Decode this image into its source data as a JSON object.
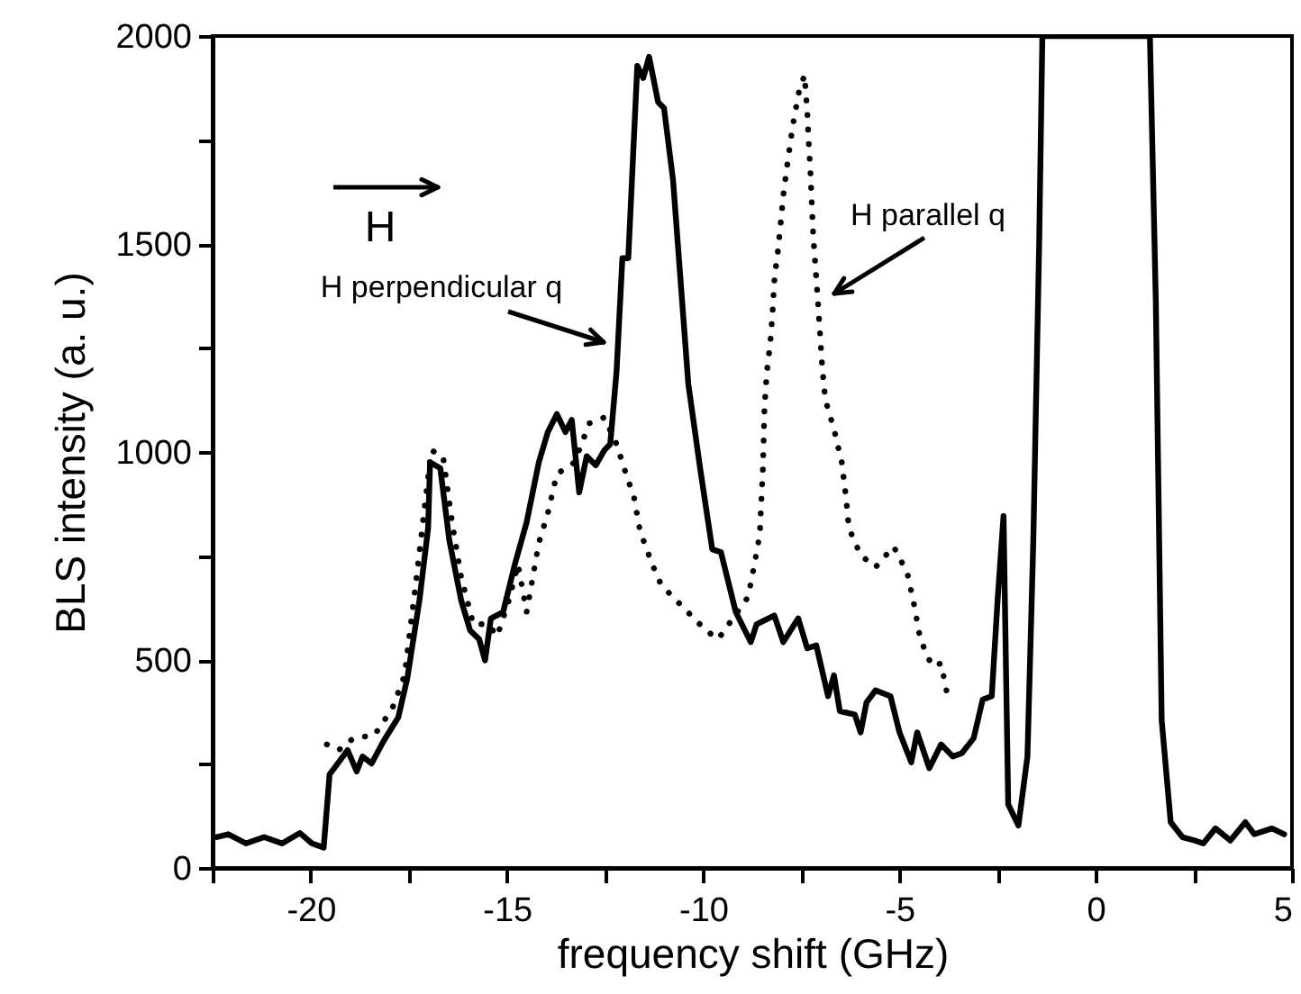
{
  "chart_data": {
    "type": "line",
    "xlabel": "frequency shift (GHz)",
    "ylabel": "BLS intensity (a. u.)",
    "xlim": [
      -22.5,
      5
    ],
    "ylim": [
      0,
      2000
    ],
    "xticks": [
      {
        "value": -22.5,
        "label": null
      },
      -20,
      {
        "value": -17.5,
        "label": null
      },
      -15,
      {
        "value": -12.5,
        "label": null
      },
      -10,
      {
        "value": -7.5,
        "label": null
      },
      -5,
      {
        "value": -2.5,
        "label": null
      },
      0,
      {
        "value": 2.5,
        "label": null
      },
      5
    ],
    "yticks": [
      0,
      {
        "value": 250,
        "label": null
      },
      500,
      {
        "value": 750,
        "label": null
      },
      1000,
      {
        "value": 1250,
        "label": null
      },
      1500,
      {
        "value": 1750,
        "label": null
      },
      2000
    ],
    "grid": false,
    "series": [
      {
        "color": "#000000",
        "line_style": "solid",
        "x": [
          -22.41,
          -22.1,
          -21.65,
          -21.19,
          -20.73,
          -20.28,
          -19.97,
          -19.67,
          -19.52,
          -19.29,
          -19.06,
          -18.83,
          -18.68,
          -18.45,
          -18.15,
          -17.77,
          -17.54,
          -17.23,
          -17.01,
          -16.96,
          -16.7,
          -16.47,
          -16.17,
          -15.94,
          -15.71,
          -15.56,
          -15.41,
          -15.1,
          -14.8,
          -14.5,
          -14.19,
          -13.96,
          -13.73,
          -13.51,
          -13.35,
          -13.16,
          -12.97,
          -12.74,
          -12.52,
          -12.37,
          -12.21,
          -12.06,
          -11.91,
          -11.68,
          -11.53,
          -11.38,
          -11.15,
          -11.0,
          -10.77,
          -10.38,
          -10.08,
          -9.77,
          -9.55,
          -9.17,
          -8.79,
          -8.64,
          -8.19,
          -7.96,
          -7.58,
          -7.35,
          -7.12,
          -6.82,
          -6.67,
          -6.52,
          -6.14,
          -5.99,
          -5.84,
          -5.61,
          -5.23,
          -5.0,
          -4.7,
          -4.55,
          -4.24,
          -3.94,
          -3.64,
          -3.41,
          -3.11,
          -2.88,
          -2.65,
          -2.5,
          -2.35,
          -2.23,
          -1.97,
          -1.74,
          -1.59,
          -1.44,
          -1.36,
          1.38,
          1.53,
          1.68,
          1.91,
          2.21,
          2.52,
          2.74,
          3.05,
          3.43,
          3.81,
          4.04,
          4.49,
          4.8
        ],
        "values": [
          74,
          81,
          59,
          74,
          59,
          84,
          59,
          49,
          225,
          254,
          283,
          232,
          268,
          251,
          304,
          362,
          456,
          644,
          817,
          975,
          961,
          788,
          644,
          571,
          550,
          499,
          600,
          615,
          730,
          831,
          975,
          1048,
          1091,
          1048,
          1077,
          903,
          990,
          968,
          1004,
          1019,
          1192,
          1466,
          1466,
          1928,
          1899,
          1950,
          1841,
          1827,
          1654,
          1163,
          961,
          766,
          759,
          615,
          543,
          586,
          607,
          543,
          600,
          528,
          535,
          413,
          463,
          377,
          369,
          326,
          398,
          427,
          413,
          326,
          254,
          326,
          240,
          297,
          268,
          276,
          312,
          405,
          413,
          644,
          846,
          153,
          102,
          268,
          788,
          1509,
          2000,
          2000,
          1365,
          355,
          110,
          74,
          66,
          59,
          95,
          66,
          110,
          81,
          95,
          81
        ]
      },
      {
        "color": "#000000",
        "line_style": "dotted",
        "x": [
          -19.59,
          -19.29,
          -18.91,
          -18.38,
          -17.92,
          -17.61,
          -17.31,
          -16.93,
          -16.63,
          -16.4,
          -16.17,
          -15.86,
          -15.48,
          -15.25,
          -14.95,
          -14.72,
          -14.5,
          -14.19,
          -13.96,
          -13.73,
          -13.28,
          -12.9,
          -12.52,
          -12.21,
          -11.99,
          -11.76,
          -11.61,
          -11.3,
          -11.07,
          -10.84,
          -10.31,
          -9.93,
          -9.62,
          -8.86,
          -8.71,
          -8.56,
          -8.48,
          -8.44,
          -8.38,
          -8.29,
          -8.23,
          -8.18,
          -8.1,
          -7.95,
          -7.84,
          -7.72,
          -7.57,
          -7.42,
          -7.35,
          -7.32,
          -7.27,
          -7.2,
          -7.08,
          -6.97,
          -6.89,
          -6.67,
          -6.47,
          -6.36,
          -6.29,
          -5.99,
          -5.61,
          -5.15,
          -4.8,
          -4.62,
          -4.47,
          -4.17,
          -3.94,
          -3.79
        ],
        "values": [
          297,
          283,
          312,
          319,
          384,
          463,
          694,
          1004,
          990,
          831,
          701,
          586,
          586,
          557,
          644,
          730,
          615,
          781,
          853,
          947,
          975,
          1069,
          1083,
          1019,
          954,
          889,
          810,
          730,
          680,
          658,
          607,
          571,
          550,
          651,
          723,
          802,
          961,
          1105,
          1192,
          1264,
          1343,
          1423,
          1481,
          1625,
          1704,
          1784,
          1863,
          1906,
          1820,
          1755,
          1675,
          1524,
          1365,
          1206,
          1126,
          1055,
          975,
          889,
          817,
          752,
          723,
          773,
          709,
          629,
          550,
          485,
          492,
          420
        ]
      }
    ],
    "annotations": [
      "H perpendicular q",
      "H parallel q",
      "H"
    ]
  }
}
